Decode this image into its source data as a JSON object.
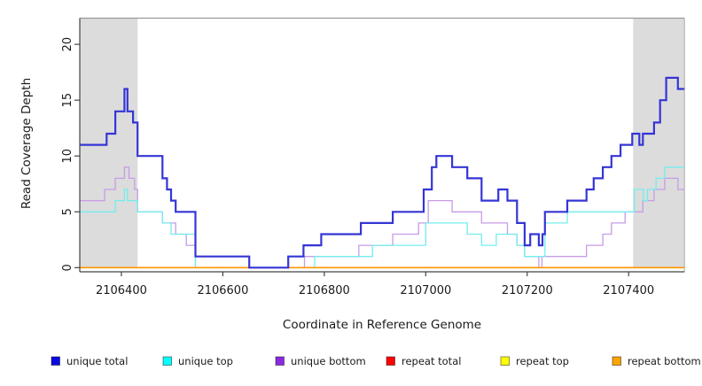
{
  "chart_data": {
    "type": "line",
    "subtype": "step-coverage-plot",
    "title": "",
    "xlabel": "Coordinate in Reference Genome",
    "ylabel": "Read Coverage Depth",
    "xlim": [
      2106318,
      2107510
    ],
    "ylim": [
      0,
      22
    ],
    "grid": false,
    "x_ticks": [
      {
        "value": 2106400,
        "label": "2106400"
      },
      {
        "value": 2106600,
        "label": "2106600"
      },
      {
        "value": 2106800,
        "label": "2106800"
      },
      {
        "value": 2107000,
        "label": "2107000"
      },
      {
        "value": 2107200,
        "label": "2107200"
      },
      {
        "value": 2107400,
        "label": "2107400"
      }
    ],
    "y_ticks": [
      {
        "value": 0,
        "label": "0"
      },
      {
        "value": 5,
        "label": "5"
      },
      {
        "value": 10,
        "label": "10"
      },
      {
        "value": 15,
        "label": "15"
      },
      {
        "value": 20,
        "label": "20"
      }
    ],
    "shaded_regions": [
      {
        "name": "left-gray-band",
        "x_start": 2106318,
        "x_end": 2106432,
        "color": "#dcdcdc"
      },
      {
        "name": "right-gray-band",
        "x_start": 2107409,
        "x_end": 2107510,
        "color": "#dcdcdc"
      }
    ],
    "legend_position": "bottom",
    "legend": [
      {
        "label": "unique total",
        "fill": "#0a0ae0",
        "border": "rgba(0,0,0,0.45)"
      },
      {
        "label": "unique top",
        "fill": "#00ffff",
        "border": "rgba(0,0,0,0.45)"
      },
      {
        "label": "unique bottom",
        "fill": "#8a2be2",
        "border": "rgba(0,0,0,0.45)"
      },
      {
        "label": "repeat total",
        "fill": "#ff0000",
        "border": "rgba(0,0,0,0.45)"
      },
      {
        "label": "repeat top",
        "fill": "#ffff00",
        "border": "rgba(0,0,0,0.45)"
      },
      {
        "label": "repeat bottom",
        "fill": "#ffa500",
        "border": "rgba(0,0,0,0.45)"
      }
    ],
    "series": [
      {
        "name": "repeat total",
        "color": "#e00000",
        "width": 1.2,
        "points": [
          [
            2106318,
            0
          ]
        ]
      },
      {
        "name": "repeat top",
        "color": "#f2f200",
        "width": 1.2,
        "points": [
          [
            2106318,
            0
          ]
        ]
      },
      {
        "name": "unique bottom",
        "color": "#c79ce8",
        "width": 1.3,
        "points": [
          [
            2106318,
            6
          ],
          [
            2106367,
            7
          ],
          [
            2106388,
            8
          ],
          [
            2106406,
            9
          ],
          [
            2106415,
            8
          ],
          [
            2106426,
            7
          ],
          [
            2106432,
            5
          ],
          [
            2106481,
            4
          ],
          [
            2106507,
            3
          ],
          [
            2106528,
            2
          ],
          [
            2106546,
            0
          ],
          [
            2106761,
            1
          ],
          [
            2106868,
            2
          ],
          [
            2106935,
            3
          ],
          [
            2106986,
            4
          ],
          [
            2107005,
            6
          ],
          [
            2107052,
            5
          ],
          [
            2107110,
            4
          ],
          [
            2107161,
            3
          ],
          [
            2107180,
            2
          ],
          [
            2107195,
            1
          ],
          [
            2107223,
            0
          ],
          [
            2107229,
            1
          ],
          [
            2107317,
            2
          ],
          [
            2107349,
            3
          ],
          [
            2107366,
            4
          ],
          [
            2107393,
            5
          ],
          [
            2107428,
            6
          ],
          [
            2107450,
            7
          ],
          [
            2107471,
            8
          ],
          [
            2107497,
            7
          ]
        ]
      },
      {
        "name": "unique top",
        "color": "#74eded",
        "width": 1.3,
        "points": [
          [
            2106318,
            5
          ],
          [
            2106388,
            6
          ],
          [
            2106406,
            7
          ],
          [
            2106412,
            6
          ],
          [
            2106432,
            5
          ],
          [
            2106481,
            4
          ],
          [
            2106498,
            3
          ],
          [
            2106546,
            0
          ],
          [
            2106781,
            1
          ],
          [
            2106895,
            2
          ],
          [
            2107000,
            4
          ],
          [
            2107082,
            3
          ],
          [
            2107110,
            2
          ],
          [
            2107139,
            3
          ],
          [
            2107180,
            2
          ],
          [
            2107195,
            1
          ],
          [
            2107235,
            4
          ],
          [
            2107279,
            5
          ],
          [
            2107411,
            7
          ],
          [
            2107429,
            6
          ],
          [
            2107437,
            7
          ],
          [
            2107454,
            8
          ],
          [
            2107471,
            9
          ]
        ]
      },
      {
        "name": "repeat bottom",
        "color": "#ff9500",
        "width": 1.6,
        "points": [
          [
            2106318,
            0
          ]
        ]
      },
      {
        "name": "unique total",
        "color": "#3535d6",
        "width": 2.2,
        "points": [
          [
            2106318,
            11
          ],
          [
            2106371,
            12
          ],
          [
            2106388,
            14
          ],
          [
            2106406,
            16
          ],
          [
            2106412,
            14
          ],
          [
            2106423,
            13
          ],
          [
            2106432,
            10
          ],
          [
            2106481,
            8
          ],
          [
            2106490,
            7
          ],
          [
            2106498,
            6
          ],
          [
            2106507,
            5
          ],
          [
            2106546,
            1
          ],
          [
            2106652,
            0
          ],
          [
            2106729,
            1
          ],
          [
            2106759,
            2
          ],
          [
            2106794,
            3
          ],
          [
            2106872,
            4
          ],
          [
            2106935,
            5
          ],
          [
            2106996,
            7
          ],
          [
            2107012,
            9
          ],
          [
            2107021,
            10
          ],
          [
            2107052,
            9
          ],
          [
            2107082,
            8
          ],
          [
            2107110,
            6
          ],
          [
            2107143,
            7
          ],
          [
            2107161,
            6
          ],
          [
            2107180,
            4
          ],
          [
            2107195,
            2
          ],
          [
            2107206,
            3
          ],
          [
            2107223,
            2
          ],
          [
            2107230,
            3
          ],
          [
            2107235,
            5
          ],
          [
            2107279,
            6
          ],
          [
            2107317,
            7
          ],
          [
            2107331,
            8
          ],
          [
            2107349,
            9
          ],
          [
            2107366,
            10
          ],
          [
            2107384,
            11
          ],
          [
            2107407,
            12
          ],
          [
            2107421,
            11
          ],
          [
            2107428,
            12
          ],
          [
            2107450,
            13
          ],
          [
            2107462,
            15
          ],
          [
            2107474,
            17
          ],
          [
            2107497,
            16
          ]
        ]
      }
    ]
  }
}
